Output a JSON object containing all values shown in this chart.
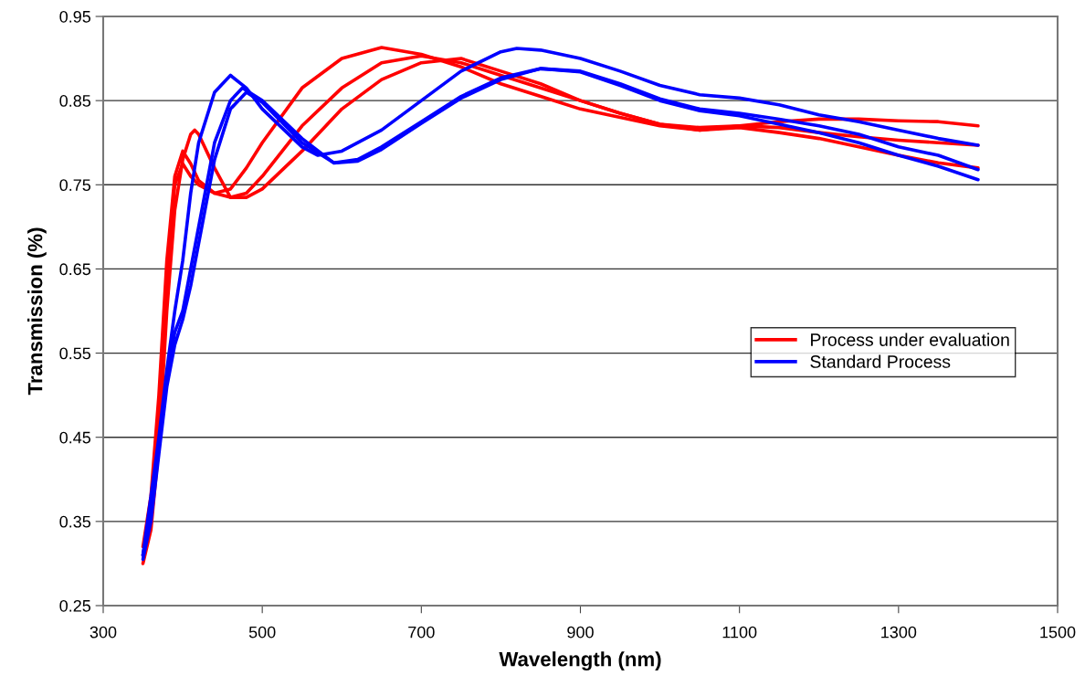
{
  "chart_data": {
    "type": "line",
    "xlabel": "Wavelength (nm)",
    "ylabel": "Transmission (%)",
    "xlim": [
      300,
      1500
    ],
    "xticks": [
      300,
      500,
      700,
      900,
      1100,
      1300,
      1500
    ],
    "ylim": [
      0.25,
      0.95
    ],
    "yticks": [
      0.25,
      0.35,
      0.45,
      0.55,
      0.65,
      0.75,
      0.85,
      0.95
    ],
    "grid": "y",
    "legend": "right",
    "marker": "none",
    "line_style": "solid",
    "series": [
      {
        "name": "Process under evaluation",
        "color": "#ff0000",
        "x": [
          350,
          360,
          370,
          380,
          390,
          400,
          410,
          420,
          440,
          460,
          480,
          500,
          550,
          600,
          650,
          700,
          750,
          800,
          850,
          900,
          950,
          1000,
          1050,
          1100,
          1150,
          1200,
          1250,
          1300,
          1350,
          1400
        ],
        "values": [
          0.32,
          0.38,
          0.5,
          0.66,
          0.76,
          0.79,
          0.775,
          0.755,
          0.74,
          0.745,
          0.77,
          0.8,
          0.865,
          0.9,
          0.913,
          0.905,
          0.89,
          0.87,
          0.855,
          0.84,
          0.83,
          0.82,
          0.815,
          0.82,
          0.825,
          0.828,
          0.828,
          0.826,
          0.825,
          0.82
        ]
      },
      {
        "color": "#ff0000",
        "x": [
          350,
          360,
          370,
          380,
          390,
          400,
          410,
          415,
          420,
          440,
          460,
          480,
          500,
          550,
          600,
          650,
          700,
          750,
          800,
          850,
          900,
          950,
          1000,
          1050,
          1100,
          1150,
          1200,
          1250,
          1300,
          1350,
          1400
        ],
        "values": [
          0.3,
          0.34,
          0.44,
          0.6,
          0.72,
          0.78,
          0.81,
          0.815,
          0.81,
          0.77,
          0.735,
          0.74,
          0.76,
          0.82,
          0.865,
          0.895,
          0.903,
          0.895,
          0.88,
          0.865,
          0.85,
          0.835,
          0.822,
          0.818,
          0.82,
          0.818,
          0.812,
          0.807,
          0.803,
          0.8,
          0.797
        ]
      },
      {
        "color": "#ff0000",
        "x": [
          350,
          360,
          370,
          380,
          390,
          400,
          410,
          420,
          440,
          460,
          480,
          500,
          550,
          600,
          650,
          700,
          750,
          800,
          850,
          900,
          950,
          1000,
          1050,
          1100,
          1150,
          1200,
          1250,
          1300,
          1350,
          1400
        ],
        "values": [
          0.31,
          0.36,
          0.47,
          0.63,
          0.75,
          0.775,
          0.76,
          0.75,
          0.74,
          0.735,
          0.735,
          0.745,
          0.79,
          0.84,
          0.875,
          0.895,
          0.9,
          0.885,
          0.87,
          0.85,
          0.835,
          0.822,
          0.815,
          0.818,
          0.812,
          0.805,
          0.795,
          0.785,
          0.776,
          0.77
        ]
      },
      {
        "name": "Standard Process",
        "color": "#0000ff",
        "x": [
          350,
          360,
          370,
          380,
          390,
          400,
          410,
          420,
          440,
          460,
          480,
          500,
          550,
          570,
          600,
          650,
          700,
          750,
          800,
          820,
          850,
          900,
          950,
          1000,
          1050,
          1100,
          1150,
          1200,
          1250,
          1300,
          1350,
          1400
        ],
        "values": [
          0.31,
          0.38,
          0.45,
          0.53,
          0.6,
          0.66,
          0.74,
          0.8,
          0.86,
          0.88,
          0.865,
          0.84,
          0.795,
          0.785,
          0.79,
          0.815,
          0.85,
          0.885,
          0.908,
          0.912,
          0.91,
          0.9,
          0.885,
          0.868,
          0.857,
          0.853,
          0.845,
          0.833,
          0.825,
          0.815,
          0.805,
          0.797
        ]
      },
      {
        "color": "#0000ff",
        "x": [
          350,
          360,
          370,
          380,
          390,
          400,
          410,
          420,
          440,
          460,
          475,
          500,
          550,
          590,
          620,
          650,
          700,
          750,
          800,
          850,
          900,
          950,
          1000,
          1050,
          1100,
          1150,
          1200,
          1250,
          1300,
          1350,
          1400
        ],
        "values": [
          0.31,
          0.36,
          0.44,
          0.52,
          0.575,
          0.6,
          0.65,
          0.7,
          0.8,
          0.85,
          0.865,
          0.85,
          0.805,
          0.776,
          0.78,
          0.795,
          0.825,
          0.855,
          0.877,
          0.888,
          0.885,
          0.87,
          0.852,
          0.84,
          0.835,
          0.828,
          0.82,
          0.81,
          0.795,
          0.785,
          0.768
        ]
      },
      {
        "color": "#0000ff",
        "x": [
          350,
          360,
          370,
          380,
          390,
          400,
          410,
          420,
          440,
          460,
          480,
          500,
          550,
          590,
          620,
          650,
          700,
          750,
          800,
          850,
          900,
          950,
          1000,
          1050,
          1100,
          1150,
          1200,
          1250,
          1300,
          1350,
          1400
        ],
        "values": [
          0.305,
          0.35,
          0.43,
          0.51,
          0.56,
          0.59,
          0.63,
          0.68,
          0.78,
          0.84,
          0.86,
          0.848,
          0.8,
          0.776,
          0.778,
          0.792,
          0.823,
          0.853,
          0.875,
          0.888,
          0.884,
          0.868,
          0.85,
          0.838,
          0.832,
          0.822,
          0.812,
          0.8,
          0.785,
          0.772,
          0.756
        ]
      }
    ]
  }
}
